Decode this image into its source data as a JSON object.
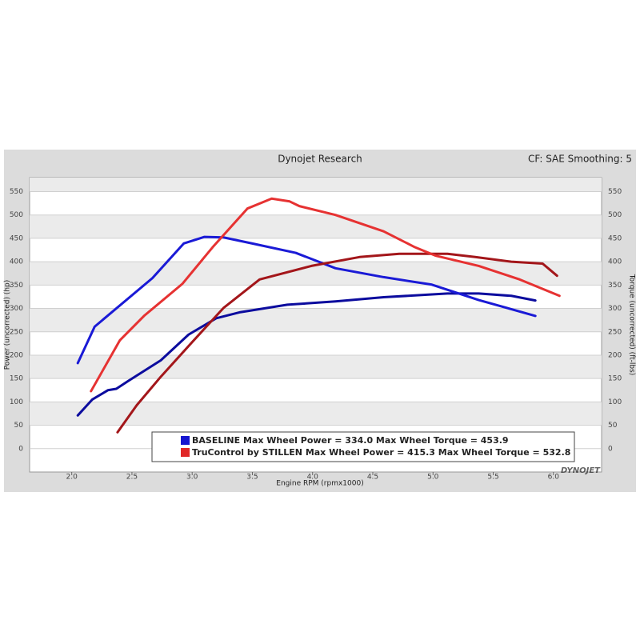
{
  "chart_data": {
    "type": "line",
    "title": "Dynojet Research",
    "subtitle": "CF: SAE Smoothing: 5",
    "x_label": "Engine RPM (rpmx1000)",
    "y_label": "Power (uncorrected) (hp)",
    "y2_label": "Torque (uncorrected) (ft-lbs)",
    "watermark": "DYNOJET",
    "xlim": [
      1.65,
      6.4
    ],
    "xticks": [
      {
        "value": 2.0,
        "label": "2.0"
      },
      {
        "value": 2.5,
        "label": "2.5"
      },
      {
        "value": 3.0,
        "label": "3.0"
      },
      {
        "value": 3.5,
        "label": "3.5"
      },
      {
        "value": 4.0,
        "label": "4.0"
      },
      {
        "value": 4.5,
        "label": "4.5"
      },
      {
        "value": 5.0,
        "label": "5.0"
      },
      {
        "value": 5.5,
        "label": "5.5"
      },
      {
        "value": 6.0,
        "label": "6.0"
      }
    ],
    "ylim": [
      -50,
      580
    ],
    "yticks": [
      0,
      50,
      100,
      150,
      200,
      250,
      300,
      350,
      400,
      450,
      500,
      550
    ],
    "y2lim": [
      -50,
      580
    ],
    "y2ticks": [
      0,
      50,
      100,
      150,
      200,
      250,
      300,
      350,
      400,
      450,
      500,
      550
    ],
    "grid": true,
    "series": [
      {
        "name": "BASELINE Max Wheel Power = 334.0 Max Wheel Torque = 453.9",
        "color": "#1515d0",
        "curves": [
          {
            "color": "#0c0c9e",
            "x": [
              2.05,
              2.17,
              2.3,
              2.37,
              2.47,
              2.74,
              2.97,
              3.2,
              3.4,
              3.79,
              4.19,
              4.59,
              5.12,
              5.38,
              5.65,
              5.85
            ],
            "values": [
              71,
              105,
              125,
              128,
              145,
              189,
              244,
              279,
              292,
              308,
              315,
              324,
              332,
              332,
              327,
              317
            ]
          },
          {
            "color": "#1a1ad6",
            "axis": "y2",
            "x": [
              2.05,
              2.19,
              2.67,
              2.93,
              3.1,
              3.26,
              3.5,
              3.86,
              4.19,
              4.59,
              4.99,
              5.38,
              5.85
            ],
            "values": [
              183,
              261,
              365,
              439,
              453,
              452,
              439,
              419,
              386,
              367,
              351,
              318,
              284
            ]
          }
        ]
      },
      {
        "name": "TruControl by STILLEN Max Wheel Power = 415.3 Max Wheel Torque = 532.8",
        "color": "#e02828",
        "curves": [
          {
            "color": "#a3161a",
            "x": [
              2.38,
              2.54,
              2.74,
              3.0,
              3.26,
              3.56,
              3.99,
              4.39,
              4.72,
              5.12,
              5.35,
              5.65,
              5.91,
              6.03
            ],
            "values": [
              35,
              93,
              154,
              228,
              301,
              362,
              391,
              410,
              417,
              417,
              410,
              400,
              396,
              370
            ]
          },
          {
            "color": "#e63232",
            "axis": "y2",
            "x": [
              2.16,
              2.4,
              2.6,
              2.92,
              3.17,
              3.46,
              3.66,
              3.81,
              3.89,
              4.19,
              4.59,
              4.85,
              5.02,
              5.38,
              5.72,
              6.05
            ],
            "values": [
              123,
              232,
              284,
              353,
              431,
              514,
              535,
              529,
              519,
              500,
              465,
              431,
              413,
              391,
              362,
              327
            ]
          }
        ]
      }
    ]
  }
}
